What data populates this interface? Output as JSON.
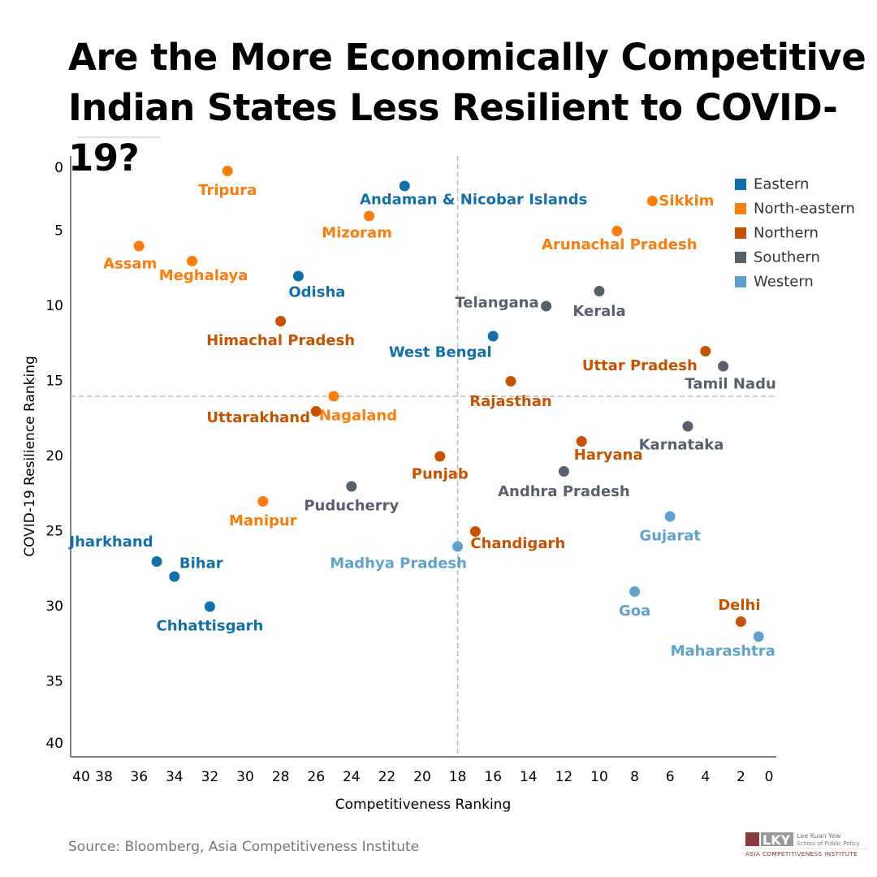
{
  "title_line1": "Are the More Economically Competitive",
  "title_line2": "Indian States Less Resilient to COVID-19?",
  "source": "Source: Bloomberg, Asia Competitiveness Institute",
  "logo": {
    "line1": "Lee Kuan Yew",
    "line2": "School of Public Policy",
    "line3": "Asia Competitiveness Institute",
    "mark": "LKY"
  },
  "chart_data": {
    "type": "scatter",
    "xlabel": "Competitiveness Ranking",
    "ylabel": "COVID-19 Resilience Ranking",
    "xlim": [
      40,
      0
    ],
    "ylim": [
      0,
      40
    ],
    "x_reversed": true,
    "y_reversed": true,
    "x_ticks": [
      40,
      38,
      36,
      34,
      32,
      30,
      28,
      26,
      24,
      22,
      20,
      18,
      16,
      14,
      12,
      10,
      8,
      6,
      4,
      2,
      0
    ],
    "y_ticks": [
      0,
      5,
      10,
      15,
      20,
      25,
      30,
      35,
      40
    ],
    "reference_lines": {
      "x": 18,
      "y": 16
    },
    "grid": false,
    "legend_position": "top-right",
    "legend": [
      {
        "name": "Eastern",
        "color": "#1170aa"
      },
      {
        "name": "North-eastern",
        "color": "#fc7d0b"
      },
      {
        "name": "Northern",
        "color": "#c85200"
      },
      {
        "name": "Southern",
        "color": "#57606c"
      },
      {
        "name": "Western",
        "color": "#5fa2ce"
      }
    ],
    "points": [
      {
        "label": "Tripura",
        "region": "North-eastern",
        "x": 31,
        "y": 1
      },
      {
        "label": "Andaman & Nicobar Islands",
        "region": "Eastern",
        "x": 21,
        "y": 2
      },
      {
        "label": "Sikkim",
        "region": "North-eastern",
        "x": 7,
        "y": 3
      },
      {
        "label": "Mizoram",
        "region": "North-eastern",
        "x": 23,
        "y": 4
      },
      {
        "label": "Arunachal Pradesh",
        "region": "North-eastern",
        "x": 9,
        "y": 5
      },
      {
        "label": "Assam",
        "region": "North-eastern",
        "x": 36,
        "y": 6
      },
      {
        "label": "Meghalaya",
        "region": "North-eastern",
        "x": 33,
        "y": 7
      },
      {
        "label": "Odisha",
        "region": "Eastern",
        "x": 27,
        "y": 8
      },
      {
        "label": "Kerala",
        "region": "Southern",
        "x": 10,
        "y": 9
      },
      {
        "label": "Telangana",
        "region": "Southern",
        "x": 13,
        "y": 10
      },
      {
        "label": "Himachal Pradesh",
        "region": "Northern",
        "x": 28,
        "y": 11
      },
      {
        "label": "West Bengal",
        "region": "Eastern",
        "x": 16,
        "y": 12
      },
      {
        "label": "Uttar Pradesh",
        "region": "Northern",
        "x": 4,
        "y": 13
      },
      {
        "label": "Tamil Nadu",
        "region": "Southern",
        "x": 3,
        "y": 14
      },
      {
        "label": "Rajasthan",
        "region": "Northern",
        "x": 15,
        "y": 15
      },
      {
        "label": "Nagaland",
        "region": "North-eastern",
        "x": 25,
        "y": 16
      },
      {
        "label": "Uttarakhand",
        "region": "Northern",
        "x": 26,
        "y": 17
      },
      {
        "label": "Karnataka",
        "region": "Southern",
        "x": 5,
        "y": 18
      },
      {
        "label": "Haryana",
        "region": "Northern",
        "x": 11,
        "y": 19
      },
      {
        "label": "Punjab",
        "region": "Northern",
        "x": 19,
        "y": 20
      },
      {
        "label": "Andhra Pradesh",
        "region": "Southern",
        "x": 12,
        "y": 21
      },
      {
        "label": "Puducherry",
        "region": "Southern",
        "x": 24,
        "y": 22
      },
      {
        "label": "Manipur",
        "region": "North-eastern",
        "x": 29,
        "y": 23
      },
      {
        "label": "Gujarat",
        "region": "Western",
        "x": 6,
        "y": 24
      },
      {
        "label": "Chandigarh",
        "region": "Northern",
        "x": 17,
        "y": 25
      },
      {
        "label": "Madhya Pradesh",
        "region": "Western",
        "x": 18,
        "y": 26
      },
      {
        "label": "Jharkhand",
        "region": "Eastern",
        "x": 35,
        "y": 27
      },
      {
        "label": "Bihar",
        "region": "Eastern",
        "x": 34,
        "y": 28
      },
      {
        "label": "Goa",
        "region": "Western",
        "x": 8,
        "y": 29
      },
      {
        "label": "Chhattisgarh",
        "region": "Eastern",
        "x": 32,
        "y": 30
      },
      {
        "label": "Delhi",
        "region": "Northern",
        "x": 2,
        "y": 31
      },
      {
        "label": "Maharashtra",
        "region": "Western",
        "x": 1,
        "y": 32
      }
    ]
  }
}
